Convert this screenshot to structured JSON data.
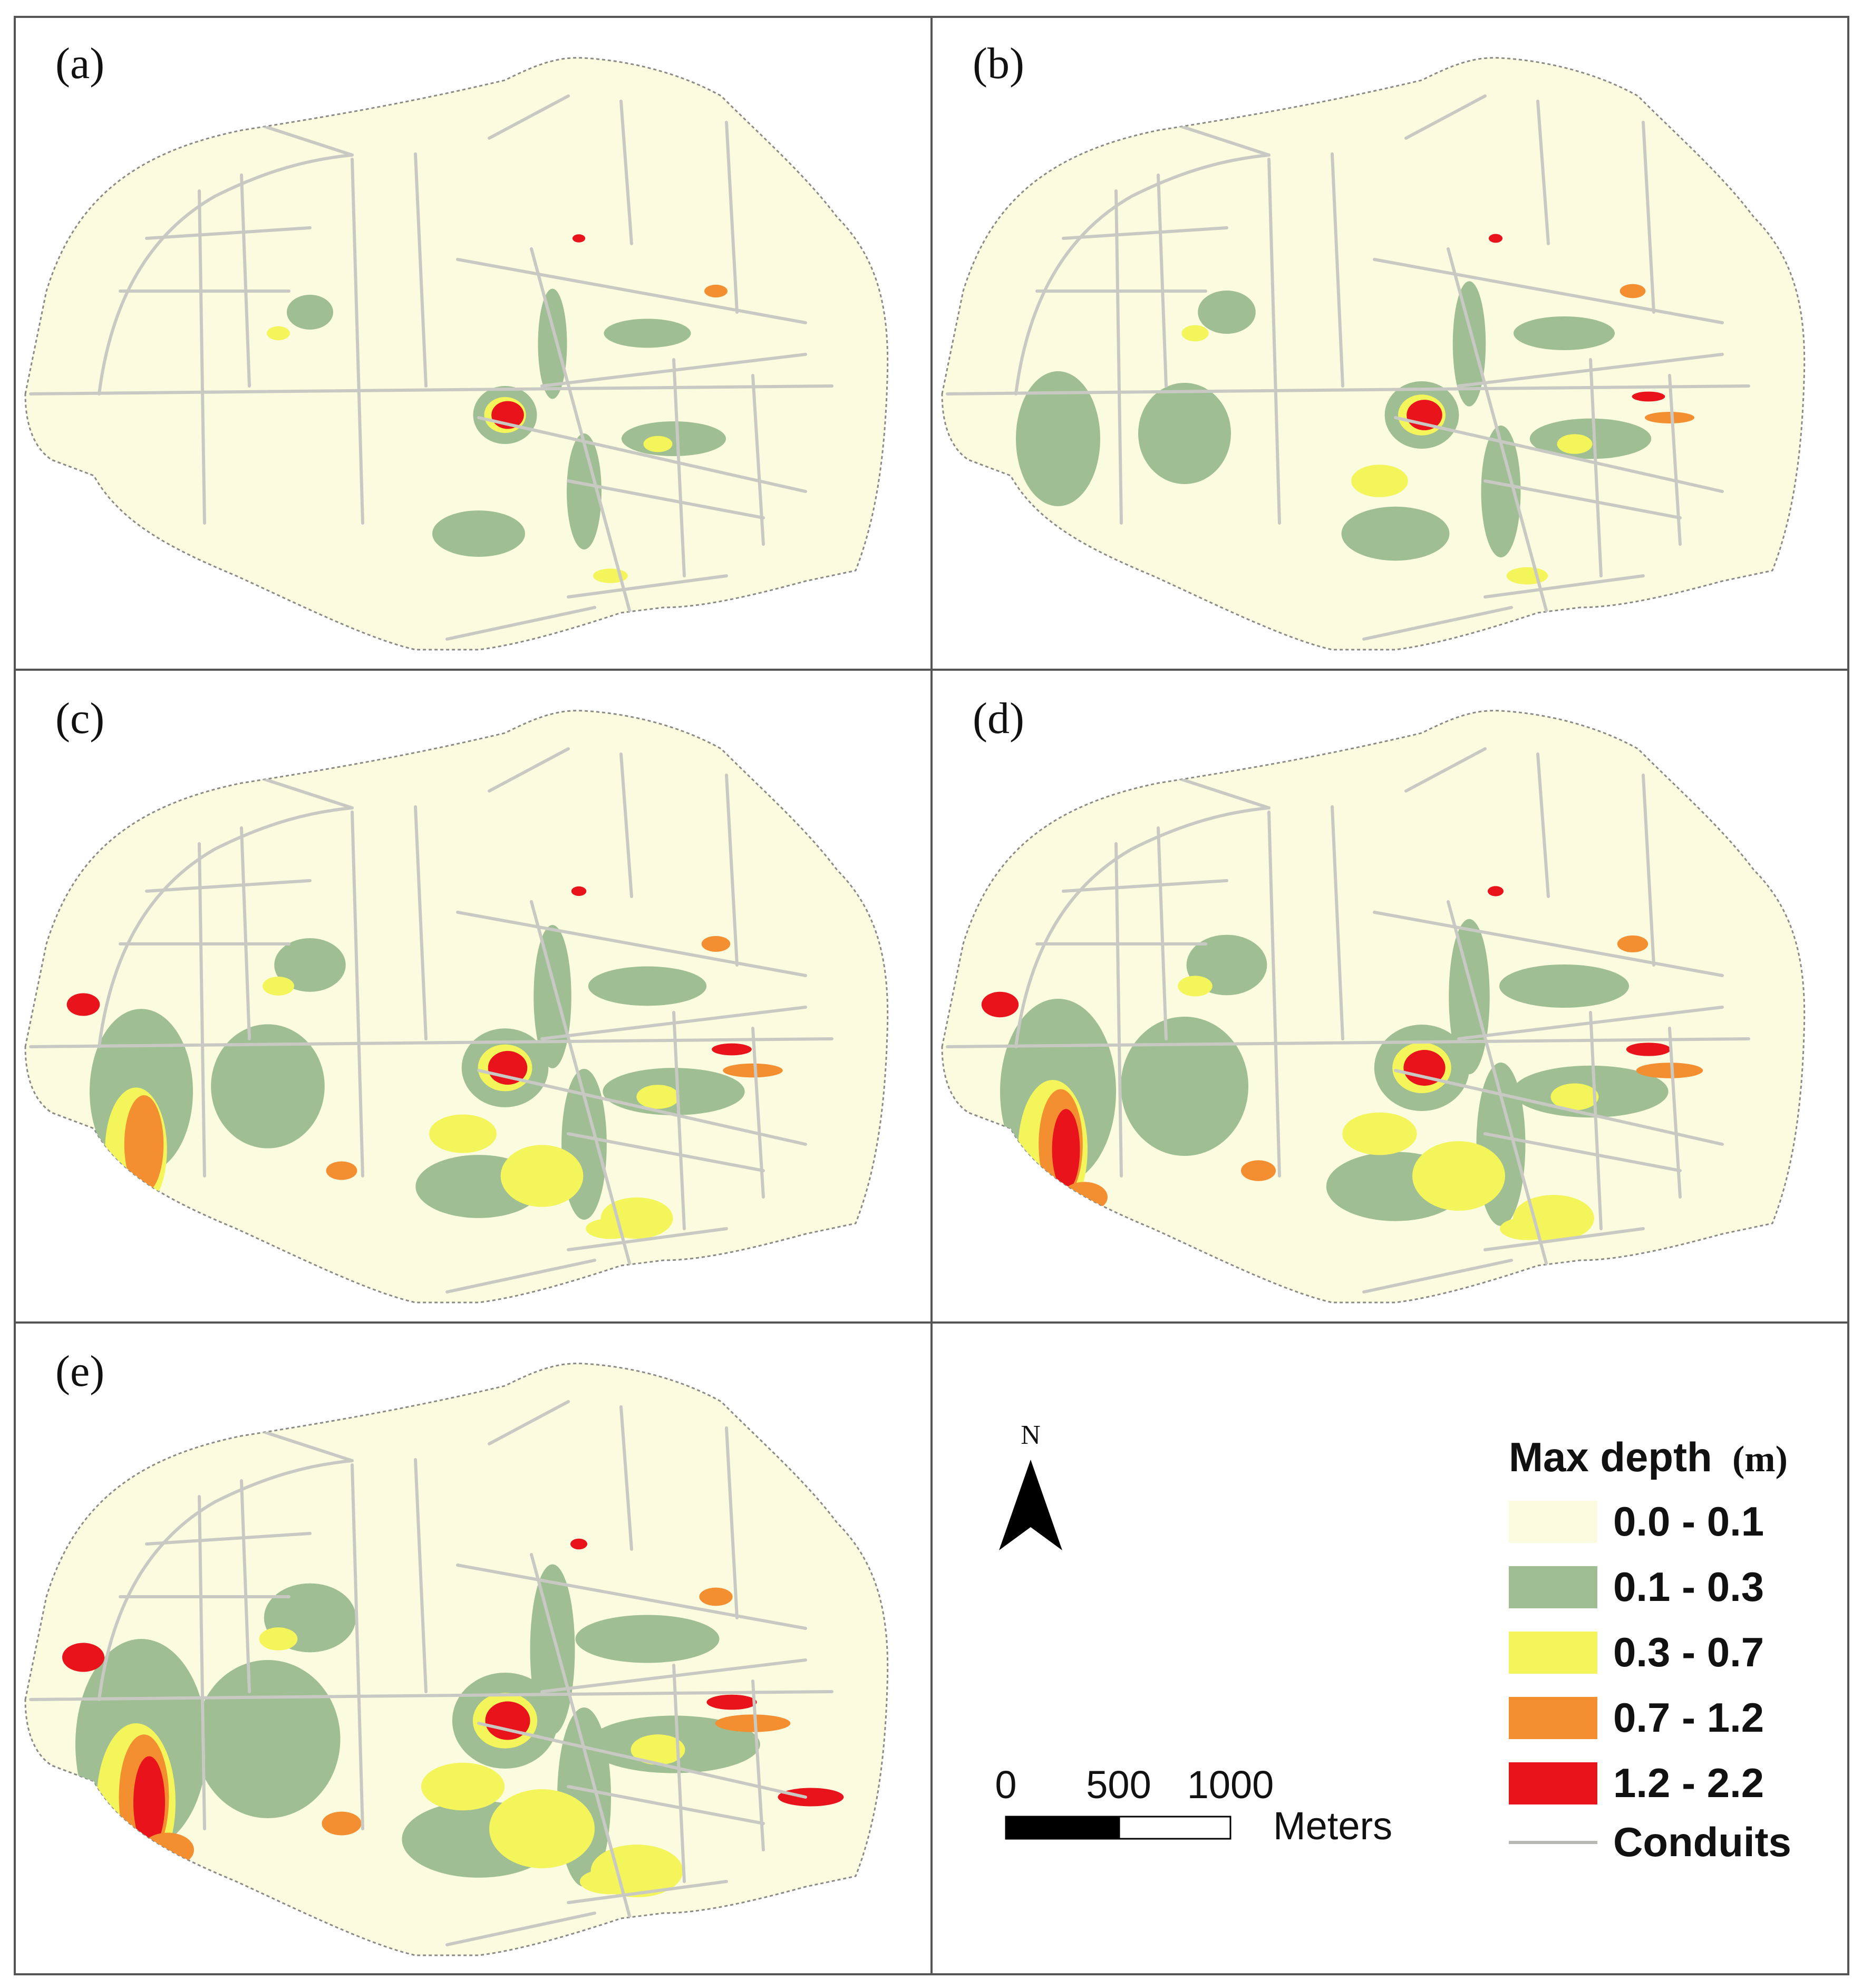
{
  "panels": [
    {
      "id": "a",
      "label": "(a)",
      "scale": 0.0
    },
    {
      "id": "b",
      "label": "(b)",
      "scale": 0.25
    },
    {
      "id": "c",
      "label": "(c)",
      "scale": 0.55
    },
    {
      "id": "d",
      "label": "(d)",
      "scale": 0.75
    },
    {
      "id": "e",
      "label": "(e)",
      "scale": 1.0
    }
  ],
  "north_arrow": {
    "label": "N"
  },
  "scale_bar": {
    "ticks": [
      "0",
      "500",
      "1000"
    ],
    "unit": "Meters"
  },
  "legend": {
    "title": "Max depth",
    "unit": "(m)",
    "classes": [
      {
        "label": "0.0 - 0.1",
        "color": "#fbfbdf"
      },
      {
        "label": "0.1 - 0.3",
        "color": "#9fbe94"
      },
      {
        "label": "0.3 - 0.7",
        "color": "#f3f55a"
      },
      {
        "label": "0.7 - 1.2",
        "color": "#f38e31"
      },
      {
        "label": "1.2 - 2.2",
        "color": "#e8131b"
      }
    ],
    "conduits_label": "Conduits",
    "conduits_color": "#c9c9c4"
  },
  "colors": {
    "frame": "#555555",
    "road_case": "#d3d3cc"
  }
}
